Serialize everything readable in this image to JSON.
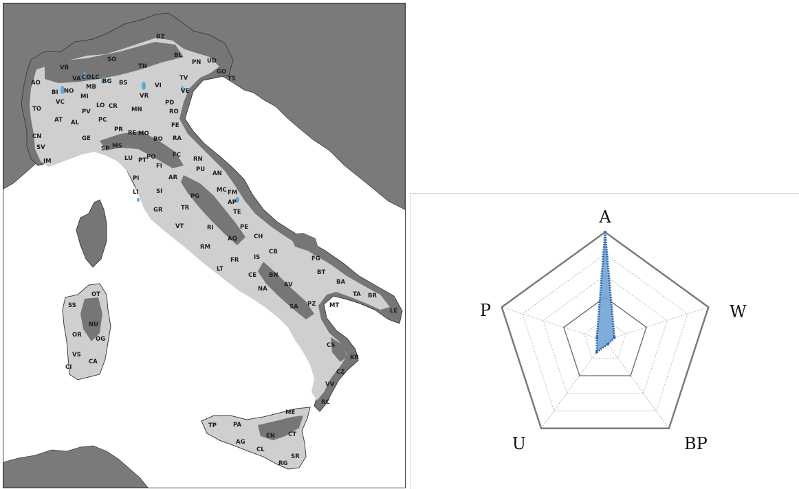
{
  "map": {
    "colors": {
      "sea": "#ffffff",
      "land_light": "#cfcfcf",
      "land_dark": "#767676",
      "foreign": "#7a7a7a",
      "border": "#3f3f3f",
      "water_highlight": "#5aa8d8"
    },
    "provinces": [
      "BZ",
      "SO",
      "TN",
      "BL",
      "PN",
      "UD",
      "GO",
      "TS",
      "AO",
      "VB",
      "CO",
      "LC",
      "BG",
      "BS",
      "TV",
      "VA",
      "MB",
      "VI",
      "NO",
      "MI",
      "VR",
      "VE",
      "BI",
      "TO",
      "VC",
      "LO",
      "CR",
      "MN",
      "PD",
      "PV",
      "RO",
      "AT",
      "AL",
      "PC",
      "CN",
      "PR",
      "RE",
      "MO",
      "FE",
      "BO",
      "GE",
      "SP",
      "MS",
      "RA",
      "SV",
      "IM",
      "LU",
      "PO",
      "PT",
      "FC",
      "RN",
      "FI",
      "PU",
      "AN",
      "PI",
      "AR",
      "MC",
      "FM",
      "LI",
      "SI",
      "AP",
      "PG",
      "TE",
      "GR",
      "TR",
      "VT",
      "RI",
      "PE",
      "CH",
      "AQ",
      "RM",
      "CB",
      "FG",
      "IS",
      "FR",
      "BT",
      "LT",
      "CE",
      "BN",
      "BA",
      "NA",
      "AV",
      "TA",
      "BR",
      "SA",
      "PZ",
      "MT",
      "LE",
      "CS",
      "KR",
      "CZ",
      "VV",
      "RC",
      "ME",
      "TP",
      "PA",
      "EN",
      "CT",
      "AG",
      "CL",
      "RG",
      "SR",
      "SS",
      "OT",
      "NU",
      "OR",
      "OG",
      "VS",
      "CA",
      "CI"
    ]
  },
  "radar": {
    "axes": [
      "A",
      "W",
      "BP",
      "U",
      "P"
    ],
    "rmax": 1.0,
    "rings": [
      0.2,
      0.4,
      0.6,
      0.8,
      1.0
    ],
    "values": [
      1.0,
      0.09,
      0.04,
      0.13,
      0.08
    ],
    "colors": {
      "fill": "#6a9fd4",
      "line": "#2f66a8",
      "grid": "#b8b8b8",
      "ring_dark": "#6f6f6f",
      "outer": "#7a7a7a"
    }
  }
}
